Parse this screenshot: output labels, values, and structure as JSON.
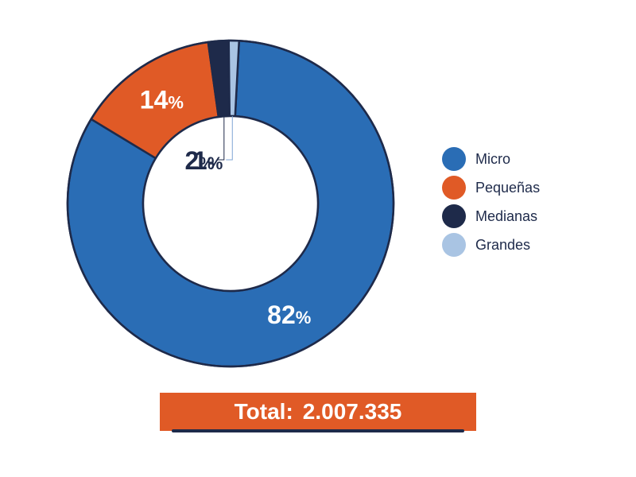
{
  "chart_data": {
    "type": "pie",
    "donut": true,
    "categories": [
      "Micro",
      "Pequeñas",
      "Medianas",
      "Grandes"
    ],
    "values": [
      82,
      14,
      2,
      1
    ],
    "value_labels": [
      "82",
      "14",
      "2",
      "1"
    ],
    "unit": "%",
    "colors": [
      "#2a6db5",
      "#e05a26",
      "#1e2a4a",
      "#a9c4e3"
    ],
    "legend_position": "right"
  },
  "legend": {
    "items": [
      {
        "label": "Micro",
        "color": "#2a6db5"
      },
      {
        "label": "Pequeñas",
        "color": "#e05a26"
      },
      {
        "label": "Medianas",
        "color": "#1e2a4a"
      },
      {
        "label": "Grandes",
        "color": "#a9c4e3"
      }
    ]
  },
  "total": {
    "label": "Total:",
    "value": "2.007.335",
    "background": "#e05a26",
    "underline": "#1e2a4a"
  }
}
